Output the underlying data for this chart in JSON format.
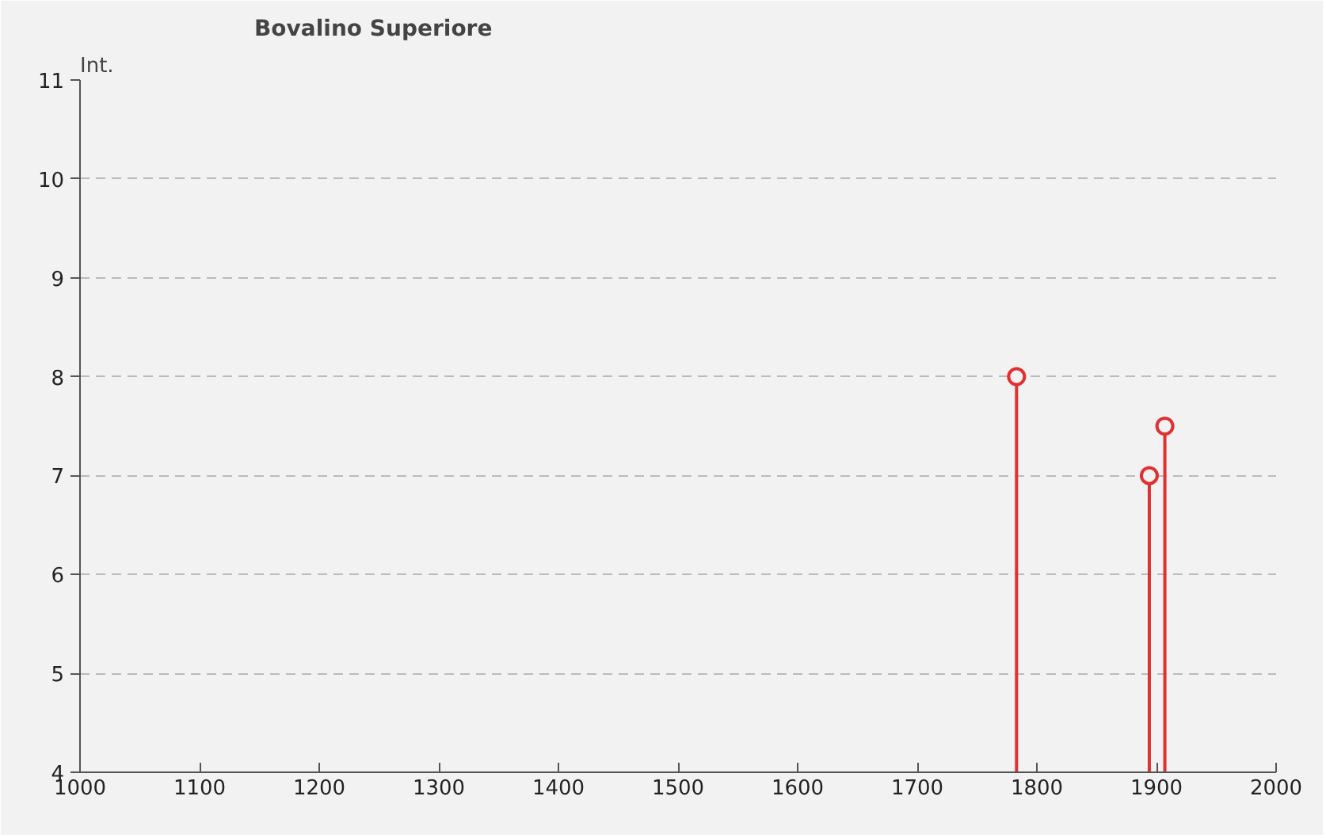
{
  "chart_data": {
    "type": "lollipop",
    "title": "Bovalino Superiore",
    "ylabel": "Int.",
    "x": [
      1783,
      1894,
      1907
    ],
    "series": [
      {
        "color": "#e03030",
        "values": [
          8,
          7,
          7.5
        ]
      }
    ],
    "xlim": [
      1000,
      2000
    ],
    "xticks": [
      1000,
      1100,
      1200,
      1300,
      1400,
      1500,
      1600,
      1700,
      1800,
      1900,
      2000
    ],
    "ylim": [
      4,
      11
    ],
    "yticks": [
      4,
      5,
      6,
      7,
      8,
      9,
      10,
      11
    ],
    "grid": "y",
    "marker": "circle"
  }
}
